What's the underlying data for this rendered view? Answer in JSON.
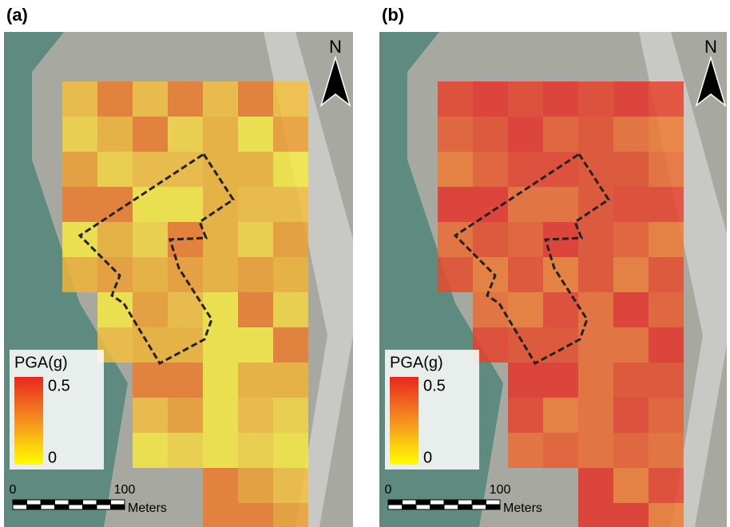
{
  "panels": [
    {
      "label": "(a)",
      "north": "N",
      "legend": {
        "title": "PGA(g)",
        "max": "0.5",
        "min": "0"
      },
      "scale": {
        "start": "0",
        "end": "100",
        "unit": "Meters"
      }
    },
    {
      "label": "(b)",
      "north": "N",
      "legend": {
        "title": "PGA(g)",
        "max": "0.5",
        "min": "0"
      },
      "scale": {
        "start": "0",
        "end": "100",
        "unit": "Meters"
      }
    }
  ]
}
